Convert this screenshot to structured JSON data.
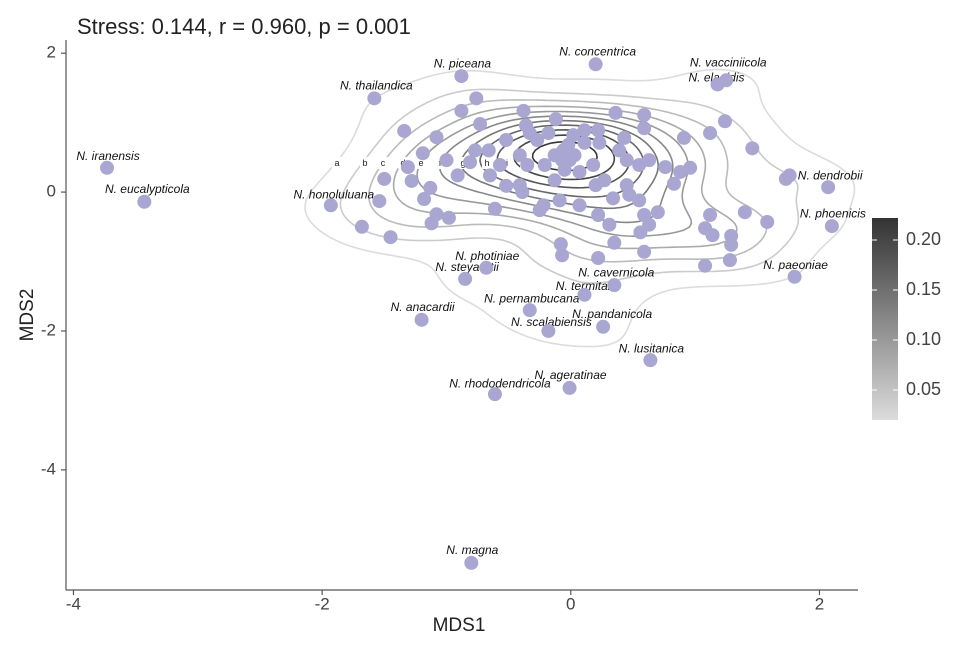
{
  "chart_data": {
    "type": "scatter",
    "title": "Stress: 0.144, r = 0.960, p =  0.001",
    "xlabel": "MDS1",
    "ylabel": "MDS2",
    "xlim": [
      -4.06,
      2.31
    ],
    "ylim": [
      -5.73,
      2.19
    ],
    "xticks": [
      -4,
      -2,
      0,
      2
    ],
    "yticks": [
      2,
      0,
      -2,
      -4
    ],
    "color": "#a9a6d1",
    "x": [
      -3.73,
      -3.43,
      -1.58,
      -0.88,
      0.2,
      1.25,
      1.18,
      2.07,
      2.1,
      1.8,
      -1.93,
      -0.68,
      -0.85,
      0.35,
      0.11,
      -0.33,
      0.26,
      -0.18,
      -1.2,
      0.64,
      -0.01,
      -0.61,
      -0.8,
      -0.76,
      -0.88,
      -1.34,
      -1.08,
      -0.73,
      -0.38,
      -0.36,
      -0.12,
      0.36,
      0.59,
      0.59,
      0.91,
      1.12,
      1.24,
      1.46,
      -1.19,
      -1.31,
      -1.5,
      -1.28,
      -1.13,
      -1.54,
      -1.18,
      -1.08,
      -0.98,
      -1.12,
      -1.68,
      -1.45,
      -1.0,
      -0.91,
      -0.81,
      -0.77,
      -0.66,
      -0.52,
      -0.33,
      -0.27,
      -0.18,
      -0.41,
      -0.57,
      -0.65,
      -0.52,
      -0.35,
      -0.21,
      -0.13,
      -0.06,
      -0.01,
      0.02,
      0.11,
      0.22,
      0.23,
      0.11,
      -0.05,
      0.07,
      0.18,
      0.27,
      0.39,
      0.45,
      0.45,
      0.55,
      0.63,
      0.76,
      0.88,
      0.96,
      0.83,
      0.55,
      0.59,
      0.47,
      0.34,
      0.22,
      0.31,
      0.07,
      -0.09,
      -0.22,
      -0.25,
      -0.39,
      -0.61,
      0.7,
      0.63,
      0.56,
      1.12,
      1.14,
      1.08,
      1.4,
      1.58,
      1.29,
      1.29,
      1.28,
      1.08,
      0.59,
      0.35,
      0.22,
      -0.08,
      -0.07,
      1.73,
      1.76,
      0.43,
      0.2,
      -0.13,
      -0.41,
      -0.07,
      0.03,
      -0.02
    ],
    "y": [
      0.35,
      -0.14,
      1.35,
      1.67,
      1.84,
      1.61,
      1.55,
      0.07,
      -0.49,
      -1.22,
      -0.19,
      -1.09,
      -1.25,
      -1.34,
      -1.48,
      -1.7,
      -1.94,
      -2.0,
      -1.84,
      -2.42,
      -2.82,
      -2.91,
      -5.34,
      1.35,
      1.17,
      0.88,
      0.79,
      0.98,
      1.17,
      0.96,
      1.05,
      1.14,
      1.11,
      0.92,
      0.78,
      0.85,
      1.02,
      0.63,
      0.56,
      0.36,
      0.19,
      0.16,
      0.06,
      -0.13,
      -0.1,
      -0.32,
      -0.37,
      -0.45,
      -0.5,
      -0.65,
      0.46,
      0.24,
      0.43,
      0.6,
      0.6,
      0.75,
      0.85,
      0.75,
      0.85,
      0.53,
      0.39,
      0.24,
      0.09,
      0.39,
      0.39,
      0.53,
      0.6,
      0.46,
      0.82,
      0.89,
      0.89,
      0.71,
      0.71,
      0.32,
      0.29,
      0.39,
      0.17,
      0.6,
      0.46,
      0.1,
      0.39,
      0.46,
      0.36,
      0.29,
      0.35,
      0.12,
      -0.12,
      -0.33,
      -0.04,
      -0.09,
      -0.33,
      -0.47,
      -0.19,
      -0.12,
      -0.19,
      -0.26,
      0,
      -0.24,
      -0.29,
      -0.47,
      -0.58,
      -0.33,
      -0.62,
      -0.52,
      -0.29,
      -0.43,
      -0.63,
      -0.76,
      -0.98,
      -1.06,
      -0.86,
      -0.73,
      -0.95,
      -0.75,
      -0.91,
      0.19,
      0.24,
      0.78,
      0.1,
      0.17,
      0.1,
      0.46,
      0.53,
      0.68
    ],
    "labels": [
      "N. iranensis",
      "N. eucalypticola",
      "N. thailandica",
      "N. piceana",
      "N. concentrica",
      "N. vacciniicola",
      "N. elaeidis",
      "N. dendrobii",
      "N. phoenicis",
      "N. paeoniae",
      "N. honoluluana",
      "N. photiniae",
      "N. steyaertii",
      "N. cavernicola",
      "N. termitarii",
      "N. pernambucana",
      "N. pandanicola",
      "N. scalabiensis",
      "N. anacardii",
      "N. lusitanica",
      "N. ageratinae",
      "N. rhododendricola",
      "N. magna",
      null,
      null,
      null,
      null,
      null,
      null,
      null,
      null,
      null,
      null,
      null,
      null,
      null,
      null,
      null,
      null,
      null,
      null,
      null,
      null,
      null,
      null,
      null,
      null,
      null,
      null,
      null,
      null,
      null,
      null,
      null,
      null,
      null,
      null,
      null,
      null,
      null,
      null,
      null,
      null,
      null,
      null,
      null,
      null,
      null,
      null,
      null,
      null,
      null,
      null,
      null,
      null,
      null,
      null,
      null,
      null,
      null,
      null,
      null,
      null,
      null,
      null,
      null,
      null,
      null,
      null,
      null,
      null,
      null,
      null,
      null,
      null,
      null,
      null,
      null,
      null,
      null,
      null,
      null,
      null,
      null,
      null,
      null,
      null,
      null,
      null,
      null,
      null,
      null,
      null,
      null,
      null,
      null,
      null,
      null,
      null
    ],
    "contour_levels": [
      0.02,
      0.04,
      0.06,
      0.08,
      0.1,
      0.12,
      0.14,
      0.16,
      0.18,
      0.2,
      0.22
    ],
    "contour_labels": [
      "a",
      "b",
      "c",
      "d",
      "e",
      "f",
      "g",
      "h",
      "i",
      "j",
      "k"
    ],
    "colorbar_lim": [
      0.02,
      0.222
    ],
    "colorbar_ticks": [
      {
        "value": 0.2,
        "label": "0.20"
      },
      0.15,
      {
        "value": 0.1,
        "label": "0.10"
      },
      0.05
    ]
  }
}
